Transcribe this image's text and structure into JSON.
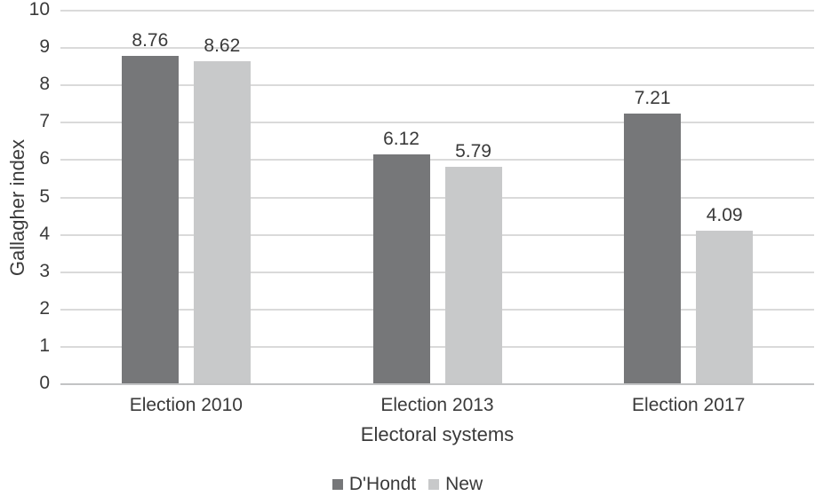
{
  "chart_data": {
    "type": "bar",
    "title": "",
    "categories": [
      "Election 2010",
      "Election 2013",
      "Election 2017"
    ],
    "series": [
      {
        "name": "D'Hondt",
        "color": "#767779",
        "values": [
          8.76,
          6.12,
          7.21
        ],
        "labels": [
          "8.76",
          "6.12",
          "7.21"
        ]
      },
      {
        "name": "New",
        "color": "#c8c9ca",
        "values": [
          8.62,
          5.79,
          4.09
        ],
        "labels": [
          "8.62",
          "5.79",
          "4.09"
        ]
      }
    ],
    "xlabel": "Electoral systems",
    "ylabel": "Gallagher index",
    "ylim": [
      0,
      10
    ],
    "yticks": [
      0,
      1,
      2,
      3,
      4,
      5,
      6,
      7,
      8,
      9,
      10
    ],
    "grid": "horizontal",
    "legend_position": "bottom",
    "data_labels": true,
    "gridline_color": "#dadada",
    "axis_line_color": "#c2c3c4",
    "text_color": "#3a3a3a"
  }
}
